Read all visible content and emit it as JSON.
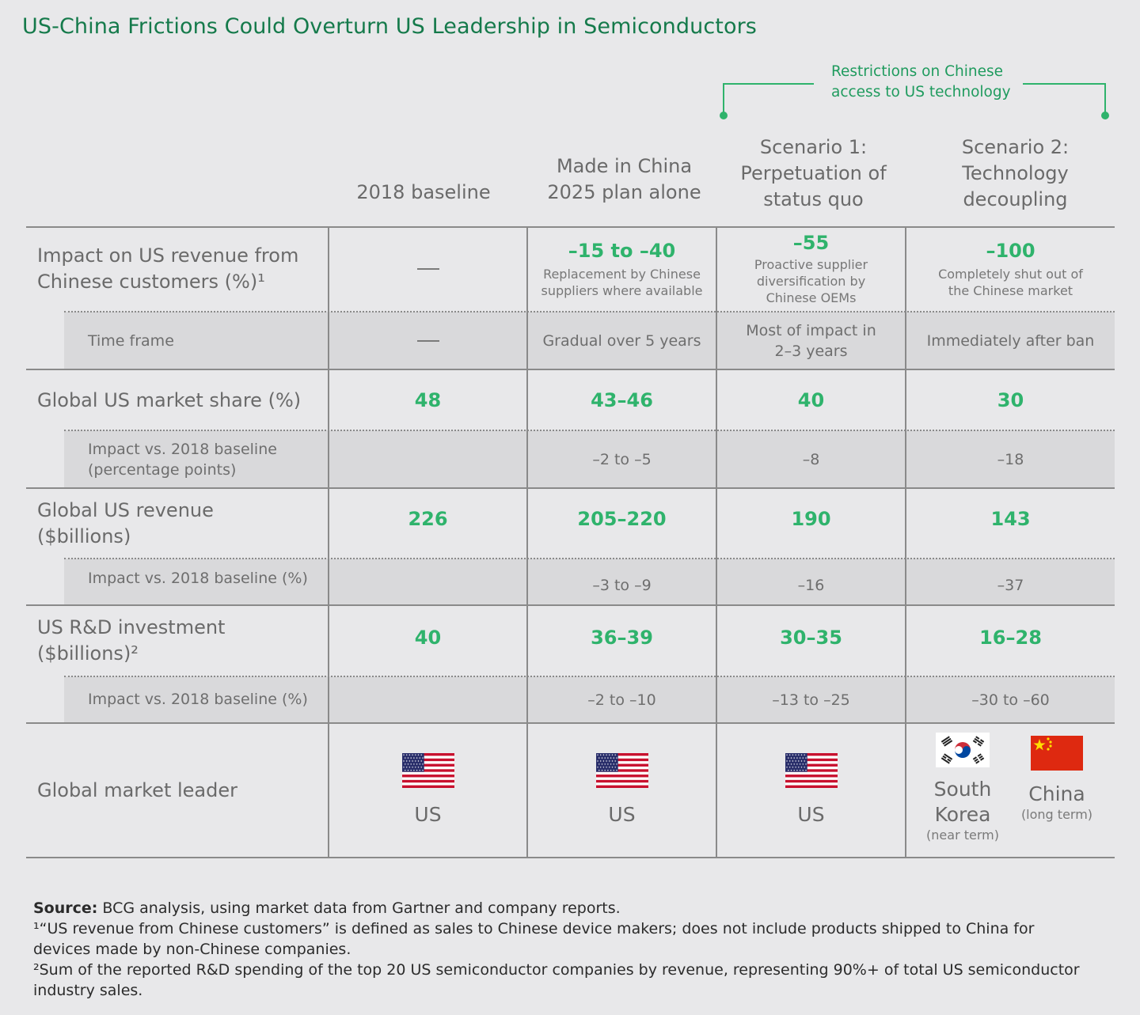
{
  "title": "US-China Frictions Could Overturn US Leadership in Semiconductors",
  "bracket_label": "Restrictions on Chinese access to US technology",
  "colors": {
    "title": "#157a4b",
    "accent": "#2fb36c",
    "rule": "#8a8a8a",
    "subrow_bg": "#d9d9db"
  },
  "columns": [
    {
      "label": "2018 baseline"
    },
    {
      "label": "Made in China 2025 plan alone"
    },
    {
      "label": "Scenario 1: Perpetuation of status quo"
    },
    {
      "label": "Scenario 2: Technology decoupling"
    }
  ],
  "rows": {
    "impact": {
      "label": "Impact on US revenue from Chinese customers (%)¹",
      "values": [
        {
          "value": "",
          "note": ""
        },
        {
          "value": "–15 to –40",
          "note": "Replacement by Chinese suppliers where available"
        },
        {
          "value": "–55",
          "note": "Proactive supplier diversification by Chinese OEMs"
        },
        {
          "value": "–100",
          "note": "Completely shut out of the Chinese market"
        }
      ],
      "sub": {
        "label": "Time frame",
        "values": [
          "",
          "Gradual over 5 years",
          "Most of impact in 2–3 years",
          "Immediately after ban"
        ]
      }
    },
    "share": {
      "label": "Global US market share (%)",
      "values": [
        "48",
        "43–46",
        "40",
        "30"
      ],
      "sub": {
        "label": "Impact vs. 2018 baseline (percentage points)",
        "values": [
          "",
          "–2 to –5",
          "–8",
          "–18"
        ]
      }
    },
    "revenue": {
      "label": "Global US revenue ($billions)",
      "values": [
        "226",
        "205–220",
        "190",
        "143"
      ],
      "sub": {
        "label": "Impact vs. 2018 baseline (%)",
        "values": [
          "",
          "–3 to –9",
          "–16",
          "–37"
        ]
      }
    },
    "rnd": {
      "label": "US R&D investment ($billions)²",
      "values": [
        "40",
        "36–39",
        "30–35",
        "16–28"
      ],
      "sub": {
        "label": "Impact vs. 2018 baseline (%)",
        "values": [
          "",
          "–2 to –10",
          "–13 to –25",
          "–30 to –60"
        ]
      }
    },
    "leader": {
      "label": "Global market leader",
      "values": [
        {
          "flag": "us-flag-icon",
          "name": "US"
        },
        {
          "flag": "us-flag-icon",
          "name": "US"
        },
        {
          "flag": "us-flag-icon",
          "name": "US"
        }
      ],
      "scenario2": [
        {
          "flag": "south-korea-flag-icon",
          "name": "South Korea",
          "sub": "(near term)"
        },
        {
          "flag": "china-flag-icon",
          "name": "China",
          "sub": "(long term)"
        }
      ]
    }
  },
  "footer": {
    "source_label": "Source:",
    "source_text": " BCG analysis, using market data from Gartner and company reports.",
    "note1": "¹“US revenue from Chinese customers” is defined as sales to Chinese device makers; does not include products shipped to China for devices made by non-Chinese companies.",
    "note2": "²Sum of the reported R&D spending of the top 20 US semiconductor companies by revenue, representing 90%+ of total US semiconductor industry sales."
  }
}
